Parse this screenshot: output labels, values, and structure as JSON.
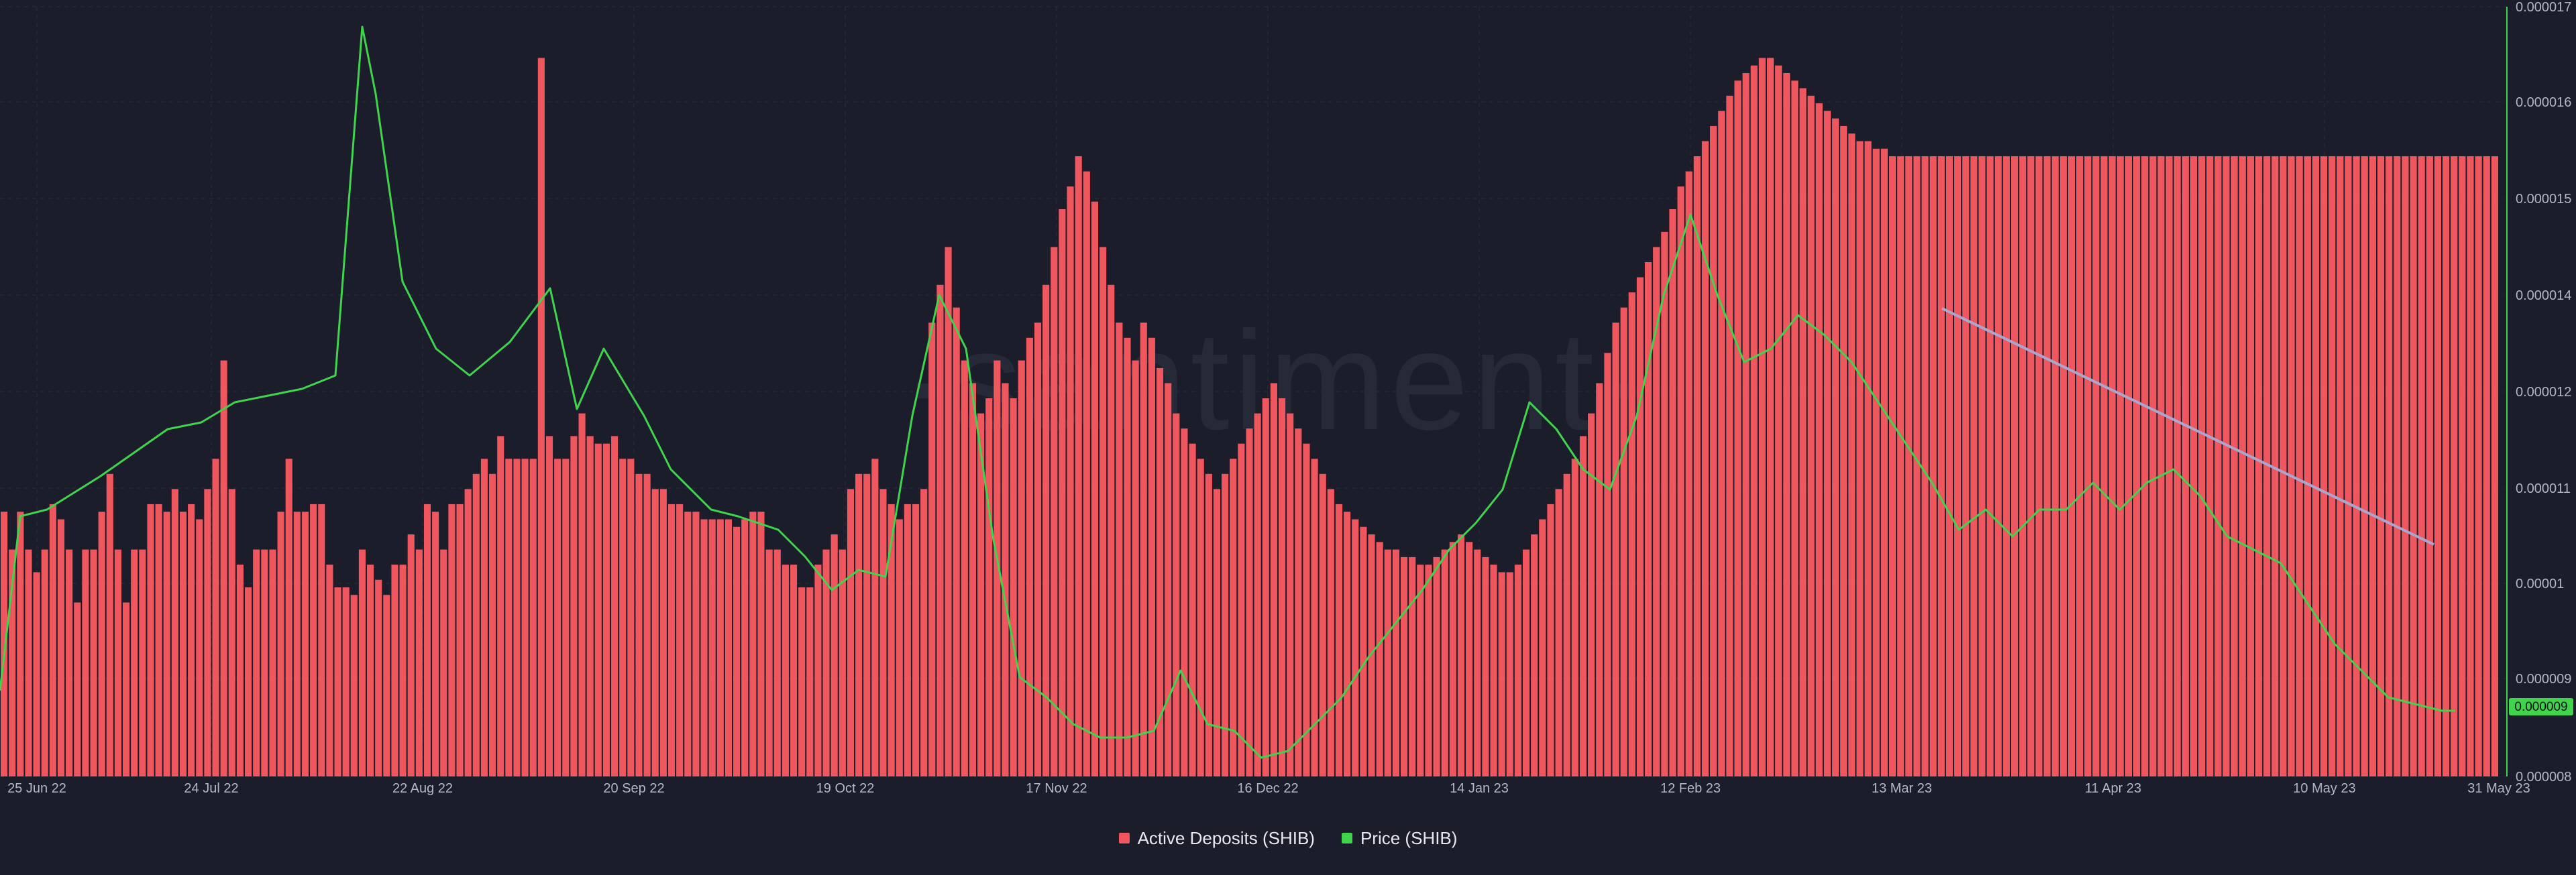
{
  "chart_data": {
    "type": "bar",
    "watermark": "·santiment·",
    "colors": {
      "background": "#1b1d2b",
      "bar": "#f0565d",
      "price_line": "#3fd44b",
      "trend_line": "#a9a6cf",
      "grid": "#2a2d3e",
      "axis_text": "#b3b6c6",
      "price_badge_bg": "#3fd44b",
      "price_badge_text": "#0b0d14"
    },
    "x_labels": [
      "25 Jun 22",
      "24 Jul 22",
      "22 Aug 22",
      "20 Sep 22",
      "19 Oct 22",
      "17 Nov 22",
      "16 Dec 22",
      "14 Jan 23",
      "12 Feb 23",
      "13 Mar 23",
      "11 Apr 23",
      "10 May 23",
      "31 May 23"
    ],
    "right_axis": {
      "ticks": [
        "0.000017",
        "0.000016",
        "0.000015",
        "0.000014",
        "0.000012",
        "0.000011",
        "0.00001",
        "0.000009",
        "0.000008"
      ],
      "ylim": [
        8e-06,
        1.7e-05
      ]
    },
    "price_label": "0.000009",
    "series": [
      {
        "name": "Active Deposits (SHIB)",
        "kind": "bar",
        "values": [
          35,
          30,
          35,
          30,
          27,
          30,
          36,
          34,
          30,
          23,
          30,
          30,
          35,
          40,
          30,
          23,
          30,
          30,
          36,
          36,
          35,
          38,
          35,
          36,
          34,
          38,
          42,
          55,
          38,
          28,
          25,
          30,
          30,
          30,
          35,
          42,
          35,
          35,
          36,
          36,
          28,
          25,
          25,
          24,
          30,
          28,
          26,
          24,
          28,
          28,
          32,
          30,
          36,
          35,
          30,
          36,
          36,
          38,
          40,
          42,
          40,
          45,
          42,
          42,
          42,
          42,
          95,
          45,
          42,
          42,
          45,
          48,
          45,
          44,
          44,
          45,
          42,
          42,
          40,
          40,
          38,
          38,
          36,
          36,
          35,
          35,
          34,
          34,
          34,
          34,
          33,
          34,
          35,
          35,
          30,
          30,
          28,
          28,
          25,
          25,
          28,
          30,
          32,
          30,
          38,
          40,
          40,
          42,
          38,
          36,
          34,
          36,
          36,
          38,
          60,
          65,
          70,
          62,
          55,
          52,
          48,
          50,
          55,
          52,
          50,
          55,
          58,
          60,
          65,
          70,
          75,
          78,
          82,
          80,
          76,
          70,
          65,
          60,
          58,
          55,
          60,
          58,
          54,
          52,
          48,
          46,
          44,
          42,
          40,
          38,
          40,
          42,
          44,
          46,
          48,
          50,
          52,
          50,
          48,
          46,
          44,
          42,
          40,
          38,
          36,
          35,
          34,
          33,
          32,
          31,
          30,
          30,
          29,
          29,
          28,
          28,
          29,
          30,
          31,
          32,
          31,
          30,
          29,
          28,
          27,
          27,
          28,
          30,
          32,
          34,
          36,
          38,
          40,
          42,
          45,
          48,
          52,
          56,
          60,
          62,
          64,
          66,
          68,
          70,
          72,
          75,
          78,
          80,
          82,
          84,
          86,
          88,
          90,
          92,
          93,
          94,
          95,
          95,
          94,
          93,
          92,
          91,
          90,
          89,
          88,
          87,
          86,
          85,
          84,
          84,
          83,
          83,
          82,
          82,
          82,
          82,
          82,
          82,
          82,
          82,
          82,
          82,
          82,
          82,
          82,
          82,
          82,
          82,
          82,
          82,
          82,
          82,
          82,
          82,
          82,
          82,
          82,
          82,
          82,
          82,
          82,
          82,
          82,
          82,
          82,
          82,
          82,
          82,
          82,
          82,
          82,
          82,
          82,
          82,
          82,
          82,
          82,
          82,
          82,
          82,
          82,
          82,
          82,
          82,
          82,
          82,
          82,
          82,
          82,
          82,
          82,
          82,
          82,
          82,
          82,
          82,
          82,
          82,
          82,
          82,
          82,
          82,
          82,
          82,
          82,
          82,
          82
        ]
      },
      {
        "name": "Price (SHIB)",
        "kind": "line",
        "values": []
      }
    ]
  }
}
